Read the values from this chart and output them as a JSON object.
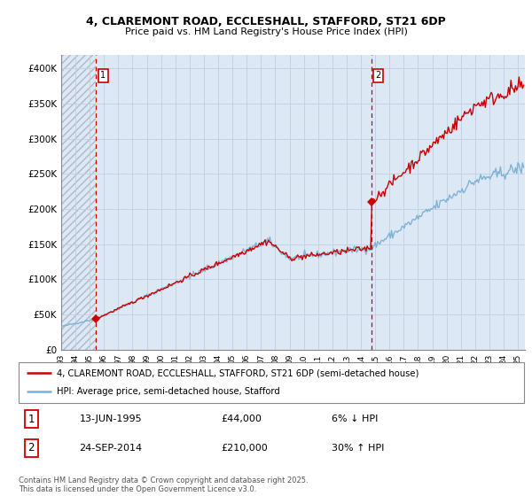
{
  "title_line1": "4, CLAREMONT ROAD, ECCLESHALL, STAFFORD, ST21 6DP",
  "title_line2": "Price paid vs. HM Land Registry's House Price Index (HPI)",
  "ylim": [
    0,
    420000
  ],
  "yticks": [
    0,
    50000,
    100000,
    150000,
    200000,
    250000,
    300000,
    350000,
    400000
  ],
  "ytick_labels": [
    "£0",
    "£50K",
    "£100K",
    "£150K",
    "£200K",
    "£250K",
    "£300K",
    "£350K",
    "£400K"
  ],
  "xlim_start": 1993.0,
  "xlim_end": 2025.5,
  "sale1_date": 1995.45,
  "sale1_price": 44000,
  "sale1_label": "1",
  "sale2_date": 2014.73,
  "sale2_price": 210000,
  "sale2_label": "2",
  "bg_color": "#dde8f5",
  "red_line_color": "#cc0000",
  "blue_line_color": "#7ab0d4",
  "dashed_vline_color": "#cc0000",
  "legend_label1": "4, CLAREMONT ROAD, ECCLESHALL, STAFFORD, ST21 6DP (semi-detached house)",
  "legend_label2": "HPI: Average price, semi-detached house, Stafford",
  "info1_num": "1",
  "info1_date": "13-JUN-1995",
  "info1_price": "£44,000",
  "info1_hpi": "6% ↓ HPI",
  "info2_num": "2",
  "info2_date": "24-SEP-2014",
  "info2_price": "£210,000",
  "info2_hpi": "30% ↑ HPI",
  "footer": "Contains HM Land Registry data © Crown copyright and database right 2025.\nThis data is licensed under the Open Government Licence v3.0."
}
